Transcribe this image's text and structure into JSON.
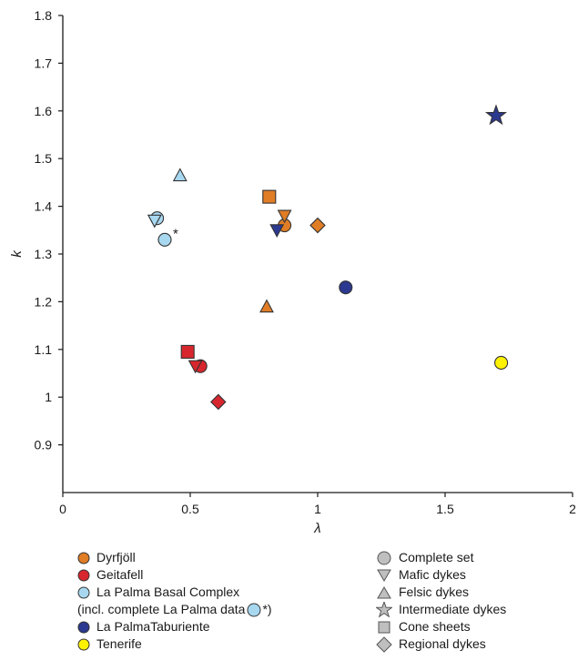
{
  "chart_data": {
    "type": "scatter",
    "xlabel": "λ",
    "ylabel": "k",
    "xlim": [
      0,
      2
    ],
    "ylim": [
      0.8,
      1.8
    ],
    "xticks": [
      0,
      0.5,
      1,
      1.5,
      2
    ],
    "yticks": [
      0.9,
      1,
      1.1,
      1.2,
      1.3,
      1.4,
      1.5,
      1.6,
      1.7,
      1.8
    ],
    "xtick_labels": [
      "0",
      "0.5",
      "1",
      "1.5",
      "2"
    ],
    "ytick_labels": [
      "0.9",
      "1",
      "1.1",
      "1.2",
      "1.3",
      "1.4",
      "1.5",
      "1.6",
      "1.7",
      "1.8"
    ],
    "grid": false,
    "legend_position": "bottom",
    "point_annotation": "*",
    "colors": {
      "Dyrfjöll": "#e07d25",
      "Geitafell": "#d8262e",
      "La Palma Basal Complex": "#a8d8f0",
      "La PalmaTaburiente": "#2b3990",
      "Tenerife": "#fff200",
      "neutral": "#bfbfbf"
    },
    "series": [
      {
        "name": "Dyrfjöll",
        "points": [
          {
            "x": 0.87,
            "y": 1.36,
            "marker": "circle"
          },
          {
            "x": 0.87,
            "y": 1.38,
            "marker": "triangle-down"
          },
          {
            "x": 0.8,
            "y": 1.19,
            "marker": "triangle-up"
          },
          {
            "x": 0.81,
            "y": 1.42,
            "marker": "square"
          },
          {
            "x": 1.0,
            "y": 1.36,
            "marker": "diamond"
          }
        ]
      },
      {
        "name": "Geitafell",
        "points": [
          {
            "x": 0.54,
            "y": 1.065,
            "marker": "circle"
          },
          {
            "x": 0.52,
            "y": 1.065,
            "marker": "triangle-down"
          },
          {
            "x": 0.49,
            "y": 1.095,
            "marker": "square"
          },
          {
            "x": 0.61,
            "y": 0.99,
            "marker": "diamond"
          }
        ]
      },
      {
        "name": "La Palma Basal Complex",
        "points": [
          {
            "x": 0.37,
            "y": 1.375,
            "marker": "circle"
          },
          {
            "x": 0.36,
            "y": 1.37,
            "marker": "triangle-down"
          },
          {
            "x": 0.46,
            "y": 1.465,
            "marker": "triangle-up"
          },
          {
            "x": 0.4,
            "y": 1.33,
            "marker": "circle",
            "annotated": true
          }
        ]
      },
      {
        "name": "La PalmaTaburiente",
        "points": [
          {
            "x": 1.11,
            "y": 1.23,
            "marker": "circle"
          },
          {
            "x": 0.84,
            "y": 1.35,
            "marker": "triangle-down"
          },
          {
            "x": 1.7,
            "y": 1.59,
            "marker": "star"
          }
        ]
      },
      {
        "name": "Tenerife",
        "points": [
          {
            "x": 1.72,
            "y": 1.072,
            "marker": "circle"
          }
        ]
      }
    ]
  },
  "legend": {
    "locations": [
      {
        "label": "Dyrfjöll",
        "color": "#e07d25"
      },
      {
        "label": "Geitafell",
        "color": "#d8262e"
      },
      {
        "label": "La Palma Basal Complex",
        "color": "#a8d8f0"
      },
      {
        "label": "La PalmaTaburiente",
        "color": "#2b3990"
      },
      {
        "label": "Tenerife",
        "color": "#fff200"
      }
    ],
    "note_prefix": "(incl. complete La Palma data",
    "note_suffix": "*)",
    "types": [
      {
        "label": "Complete set",
        "marker": "circle"
      },
      {
        "label": "Mafic dykes",
        "marker": "triangle-down"
      },
      {
        "label": "Felsic dykes",
        "marker": "triangle-up"
      },
      {
        "label": "Intermediate dykes",
        "marker": "star"
      },
      {
        "label": "Cone sheets",
        "marker": "square"
      },
      {
        "label": "Regional dykes",
        "marker": "diamond"
      }
    ]
  }
}
